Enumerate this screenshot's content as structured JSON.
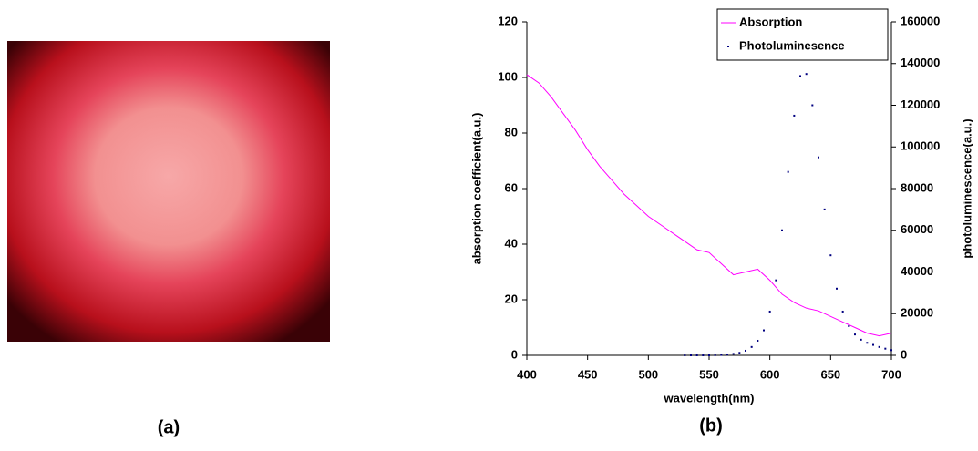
{
  "captions": [
    "(a)",
    "(b)"
  ],
  "chart_data": {
    "type": "line",
    "xlabel": "wavelength(nm)",
    "ylabel": "absorption coefficient(a.u.)",
    "y2label": "photoluminescence(a.u.)",
    "xlim": [
      400,
      700
    ],
    "xticks": [
      400,
      450,
      500,
      550,
      600,
      650,
      700
    ],
    "ylim": [
      0,
      120
    ],
    "yticks": [
      0,
      20,
      40,
      60,
      80,
      100,
      120
    ],
    "y2lim": [
      0,
      160000
    ],
    "y2ticks": [
      0,
      20000,
      40000,
      60000,
      80000,
      100000,
      120000,
      140000,
      160000
    ],
    "legend": "top-right",
    "series": [
      {
        "name": "Absorption",
        "color": "#ff00ff",
        "style": "solid",
        "x": [
          400,
          410,
          420,
          430,
          440,
          450,
          460,
          470,
          480,
          490,
          500,
          510,
          520,
          530,
          540,
          550,
          560,
          570,
          580,
          590,
          600,
          610,
          620,
          630,
          640,
          650,
          660,
          670,
          680,
          690,
          700
        ],
        "values": [
          101,
          98,
          93,
          87,
          81,
          74,
          68,
          63,
          58,
          54,
          50,
          47,
          44,
          41,
          38,
          37,
          33,
          29,
          30,
          31,
          27,
          22,
          19,
          17,
          16,
          14,
          12,
          10,
          8,
          7,
          8
        ]
      },
      {
        "name": "Photoluminesence",
        "color": "#000080",
        "style": "dotted",
        "axis": "y2",
        "x": [
          530,
          535,
          540,
          545,
          550,
          555,
          560,
          565,
          570,
          575,
          580,
          585,
          590,
          595,
          600,
          605,
          610,
          615,
          620,
          625,
          630,
          635,
          640,
          645,
          650,
          655,
          660,
          665,
          670,
          675,
          680,
          685,
          690,
          695,
          700
        ],
        "values": [
          0,
          0,
          0,
          0,
          0,
          100,
          200,
          400,
          700,
          1200,
          2200,
          4000,
          7000,
          12000,
          21000,
          36000,
          60000,
          88000,
          115000,
          134000,
          135000,
          120000,
          95000,
          70000,
          48000,
          32000,
          21000,
          14000,
          10000,
          7500,
          6000,
          5000,
          4000,
          3200,
          2500
        ]
      }
    ]
  }
}
